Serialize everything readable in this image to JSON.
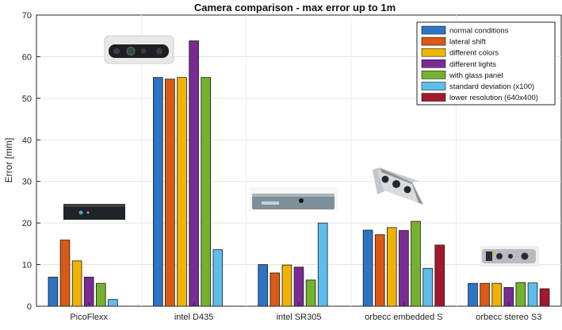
{
  "chart_data": {
    "type": "bar",
    "title": "Camera comparison - max error up to 1m",
    "xlabel": "",
    "ylabel": "Error [mm]",
    "ylim": [
      0,
      70
    ],
    "yticks": [
      0,
      10,
      20,
      30,
      40,
      50,
      60,
      70
    ],
    "grid": true,
    "legend_position": "top-right",
    "categories": [
      "PicoFlexx",
      "intel D435",
      "intel SR305",
      "orbecc embedded S",
      "orbecc stereo S3"
    ],
    "series": [
      {
        "name": "normal conditions",
        "color": "#2e74c6",
        "values": [
          7.0,
          55.0,
          10.0,
          18.3,
          5.5
        ]
      },
      {
        "name": "lateral shift",
        "color": "#d85a14",
        "values": [
          15.9,
          54.6,
          8.0,
          17.2,
          5.5
        ]
      },
      {
        "name": "different colors",
        "color": "#f0b400",
        "values": [
          10.9,
          55.0,
          9.9,
          18.9,
          5.5
        ]
      },
      {
        "name": "different lights",
        "color": "#7a2b92",
        "values": [
          7.0,
          63.8,
          9.4,
          18.2,
          4.5
        ]
      },
      {
        "name": "with glass panel",
        "color": "#74b22e",
        "values": [
          5.5,
          55.0,
          6.3,
          20.4,
          5.7
        ]
      },
      {
        "name": "standard deviation (x100)",
        "color": "#5ebdec",
        "values": [
          1.6,
          13.6,
          20.0,
          9.1,
          5.6
        ]
      },
      {
        "name": "lower resolution (640x400)",
        "color": "#a3182f",
        "values": [
          null,
          null,
          null,
          14.7,
          4.2
        ]
      }
    ],
    "images": [
      {
        "name": "intel-d435-camera-image",
        "category": "intel D435"
      },
      {
        "name": "picoflexx-camera-image",
        "category": "PicoFlexx"
      },
      {
        "name": "intel-sr305-camera-image",
        "category": "intel SR305"
      },
      {
        "name": "orbecc-embedded-s-camera-image",
        "category": "orbecc embedded S"
      },
      {
        "name": "orbecc-stereo-s3-camera-image",
        "category": "orbecc stereo S3"
      }
    ]
  }
}
